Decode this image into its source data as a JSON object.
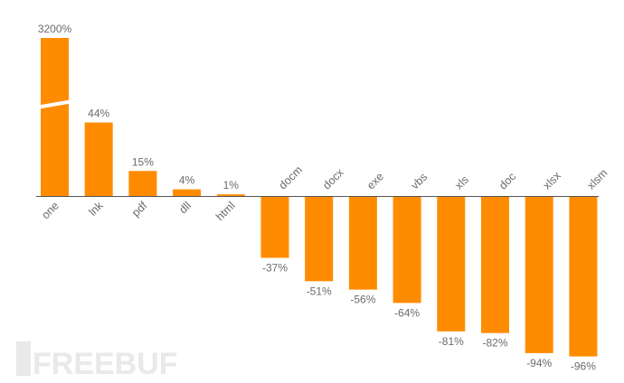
{
  "watermark": "FREEBUF",
  "chart_data": {
    "type": "bar",
    "categories": [
      "one",
      "lnk",
      "pdf",
      "dll",
      "html",
      "docm",
      "docx",
      "exe",
      "vbs",
      "xls",
      "doc",
      "xlsx",
      "xlsm"
    ],
    "values": [
      3200,
      44,
      15,
      4,
      1,
      -37,
      -51,
      -56,
      -64,
      -81,
      -82,
      -94,
      -96
    ],
    "value_labels": [
      "3200%",
      "44%",
      "15%",
      "4%",
      "1%",
      "-37%",
      "-51%",
      "-56%",
      "-64%",
      "-81%",
      "-82%",
      "-94%",
      "-96%"
    ],
    "title": "",
    "xlabel": "",
    "ylabel": "",
    "unit": "%",
    "axis_break_on": "one",
    "grid": false,
    "bar_color": "#ff8c00",
    "axis_color": "#555555",
    "label_color": "#6b6b6b"
  }
}
